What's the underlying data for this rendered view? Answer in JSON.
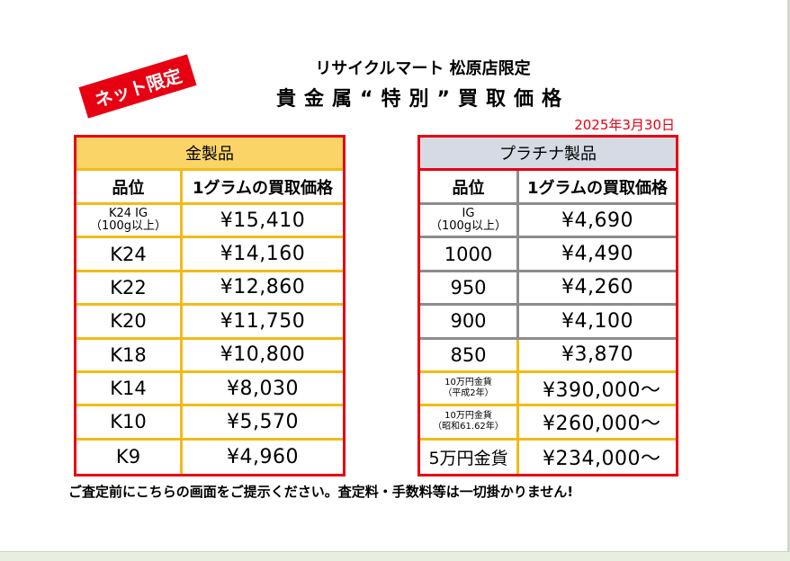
{
  "stamp": "ネット限定",
  "store_name": "リサイクルマート 松原店限定",
  "title": "貴金属“特別”買取価格",
  "date": "2025年3月30日",
  "gold": {
    "header": "金製品",
    "col_grade": "品位",
    "col_price": "1グラムの買取価格",
    "rows": [
      {
        "grade_l1": "K24 IG",
        "grade_l2": "（100g以上）",
        "price": "¥15,410"
      },
      {
        "grade": "K24",
        "price": "¥14,160"
      },
      {
        "grade": "K22",
        "price": "¥12,860"
      },
      {
        "grade": "K20",
        "price": "¥11,750"
      },
      {
        "grade": "K18",
        "price": "¥10,800"
      },
      {
        "grade": "K14",
        "price": "¥8,030"
      },
      {
        "grade": "K10",
        "price": "¥5,570"
      },
      {
        "grade": "K9",
        "price": "¥4,960"
      }
    ]
  },
  "platinum": {
    "header": "プラチナ製品",
    "col_grade": "品位",
    "col_price": "1グラムの買取価格",
    "rows": [
      {
        "grade_l1": "IG",
        "grade_l2": "（100g以上）",
        "price": "¥4,690"
      },
      {
        "grade": "1000",
        "price": "¥4,490"
      },
      {
        "grade": "950",
        "price": "¥4,260"
      },
      {
        "grade": "900",
        "price": "¥4,100"
      },
      {
        "grade": "850",
        "price": "¥3,870"
      },
      {
        "grade_l1": "10万円金貨",
        "grade_l2": "（平成2年）",
        "price": "¥390,000〜"
      },
      {
        "grade_l1": "10万円金貨",
        "grade_l2": "（昭和61.62年）",
        "price": "¥260,000〜"
      },
      {
        "grade": "5万円金貨",
        "price": "¥234,000〜"
      }
    ]
  },
  "footer": "ご査定前にこちらの画面をご提示ください。査定料・手数料等は一切掛かりません!"
}
